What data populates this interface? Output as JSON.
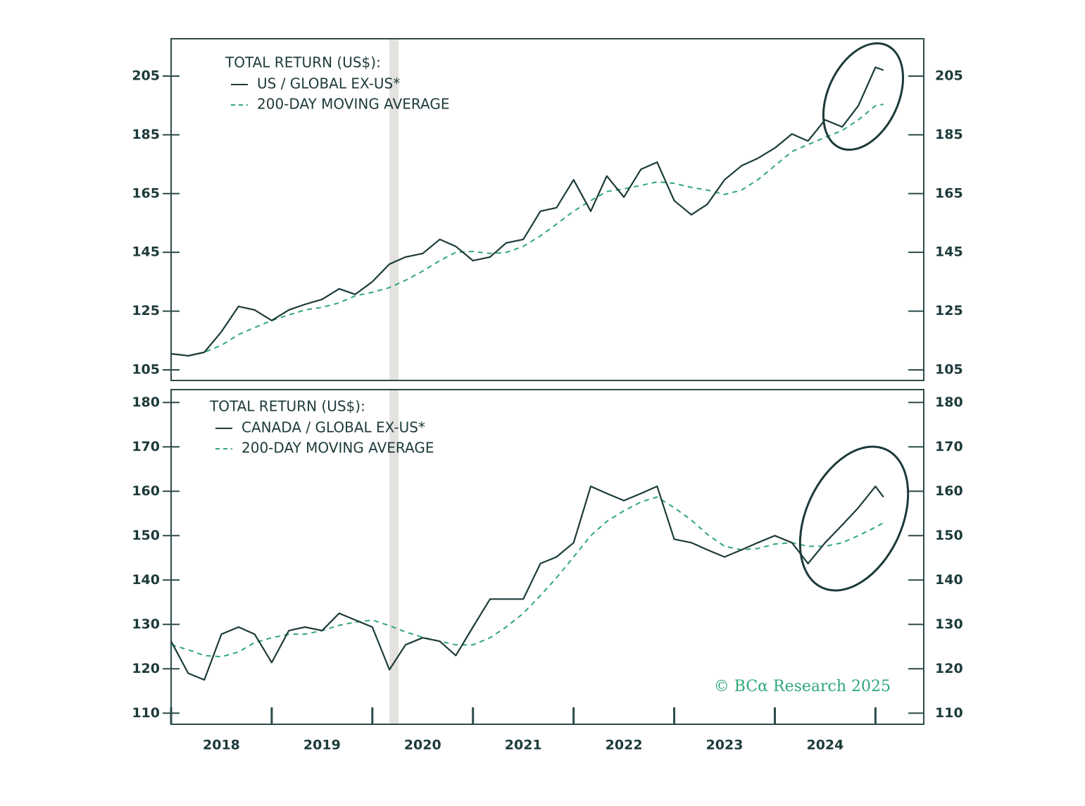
{
  "chart_data": [
    {
      "type": "line",
      "legend_title": "TOTAL RETURN (US$):",
      "x": [
        2018,
        2018.17,
        2018.33,
        2018.5,
        2018.67,
        2018.83,
        2019,
        2019.17,
        2019.33,
        2019.5,
        2019.67,
        2019.83,
        2020,
        2020.17,
        2020.33,
        2020.5,
        2020.67,
        2020.83,
        2021,
        2021.17,
        2021.33,
        2021.5,
        2021.67,
        2021.83,
        2022,
        2022.17,
        2022.33,
        2022.5,
        2022.67,
        2022.83,
        2023,
        2023.17,
        2023.33,
        2023.5,
        2023.67,
        2023.83,
        2024,
        2024.17,
        2024.33,
        2024.5,
        2024.67,
        2024.83,
        2025,
        2025.08
      ],
      "series": [
        {
          "name": "US / GLOBAL EX-US*",
          "color": "#1d3a3a",
          "style": "solid",
          "values": [
            110.5,
            109.8,
            111,
            118,
            126.6,
            125.4,
            121.8,
            125.4,
            127.3,
            129,
            132.6,
            130.7,
            135,
            141,
            143.4,
            144.6,
            149.4,
            147,
            142.2,
            143.4,
            148.2,
            149.4,
            159,
            160.2,
            169.7,
            159,
            171,
            163.8,
            173.3,
            175.7,
            162.6,
            157.8,
            161.4,
            169.7,
            174.5,
            177,
            180.5,
            185.3,
            182.9,
            190.1,
            187.7,
            194.9,
            208,
            207
          ]
        },
        {
          "name": "200-DAY MOVING AVERAGE",
          "color": "#2fa77a",
          "style": "dashed",
          "values": [
            null,
            109.8,
            111,
            113.4,
            117,
            119.4,
            121.8,
            123.7,
            125.4,
            126.3,
            127.8,
            130.2,
            131.4,
            133,
            135.5,
            138.6,
            142.2,
            145,
            145.3,
            144.6,
            145,
            147,
            150.6,
            154.6,
            159,
            162.6,
            165.7,
            166.6,
            167.8,
            169,
            168.5,
            167.1,
            166.2,
            164.7,
            166.2,
            169.7,
            174.5,
            179.3,
            181.7,
            184.1,
            186.5,
            190.1,
            194.9,
            195.4
          ]
        }
      ],
      "xlim": [
        2018,
        2025.48
      ],
      "ylim": [
        101.4,
        217.7
      ],
      "yticks": [
        105,
        125,
        145,
        165,
        185,
        205
      ],
      "shaded_region": [
        2020.17,
        2020.26
      ]
    },
    {
      "type": "line",
      "legend_title": "TOTAL RETURN (US$):",
      "x": [
        2018,
        2018.17,
        2018.33,
        2018.5,
        2018.67,
        2018.83,
        2019,
        2019.17,
        2019.33,
        2019.5,
        2019.67,
        2019.83,
        2020,
        2020.17,
        2020.33,
        2020.5,
        2020.67,
        2020.83,
        2021,
        2021.17,
        2021.33,
        2021.5,
        2021.67,
        2021.83,
        2022,
        2022.17,
        2022.33,
        2022.5,
        2022.67,
        2022.83,
        2023,
        2023.17,
        2023.33,
        2023.5,
        2023.67,
        2023.83,
        2024,
        2024.17,
        2024.33,
        2024.5,
        2024.67,
        2024.83,
        2025,
        2025.08
      ],
      "series": [
        {
          "name": "CANADA / GLOBAL EX-US*",
          "color": "#1d3a3a",
          "style": "solid",
          "values": [
            126.2,
            119,
            117.5,
            127.8,
            129.4,
            127.8,
            121.4,
            128.6,
            129.4,
            128.6,
            132.5,
            131,
            129.4,
            119.8,
            125.4,
            127,
            126.2,
            123,
            129.4,
            135.7,
            135.7,
            135.7,
            143.7,
            145.2,
            148.4,
            161.1,
            159.5,
            157.9,
            159.5,
            161.1,
            149.2,
            148.4,
            146.8,
            145.2,
            146.8,
            148.4,
            150,
            148.4,
            143.7,
            148.4,
            152.4,
            156.3,
            161.1,
            158.7
          ]
        },
        {
          "name": "200-DAY MOVING AVERAGE",
          "color": "#2fa77a",
          "style": "dashed",
          "values": [
            125.4,
            124.3,
            123,
            122.7,
            123.8,
            125.9,
            127,
            127.8,
            127.8,
            128.6,
            129.8,
            130.5,
            131,
            129.7,
            128.3,
            127.1,
            126.2,
            125.4,
            125.4,
            127,
            129.4,
            132.5,
            136.5,
            140.5,
            145.2,
            150,
            153.2,
            155.6,
            157.6,
            158.7,
            156.3,
            153.5,
            150.3,
            147.6,
            146.8,
            147.1,
            148.1,
            148.4,
            147.6,
            147.6,
            148.4,
            150,
            151.9,
            152.9
          ]
        }
      ],
      "xlim": [
        2018,
        2025.48
      ],
      "xticks": [
        {
          "value": 2018,
          "label": "2018"
        },
        {
          "value": 2019,
          "label": "2019"
        },
        {
          "value": 2020,
          "label": "2020"
        },
        {
          "value": 2021,
          "label": "2021"
        },
        {
          "value": 2022,
          "label": "2022"
        },
        {
          "value": 2023,
          "label": "2023"
        },
        {
          "value": 2024,
          "label": "2024"
        },
        {
          "value": 2025,
          "label": null
        }
      ],
      "ylim": [
        107.5,
        182.9
      ],
      "yticks": [
        110,
        120,
        130,
        140,
        150,
        160,
        170,
        180
      ],
      "shaded_region": [
        2020.17,
        2020.26
      ]
    }
  ],
  "credit": "© BCα Research 2025"
}
